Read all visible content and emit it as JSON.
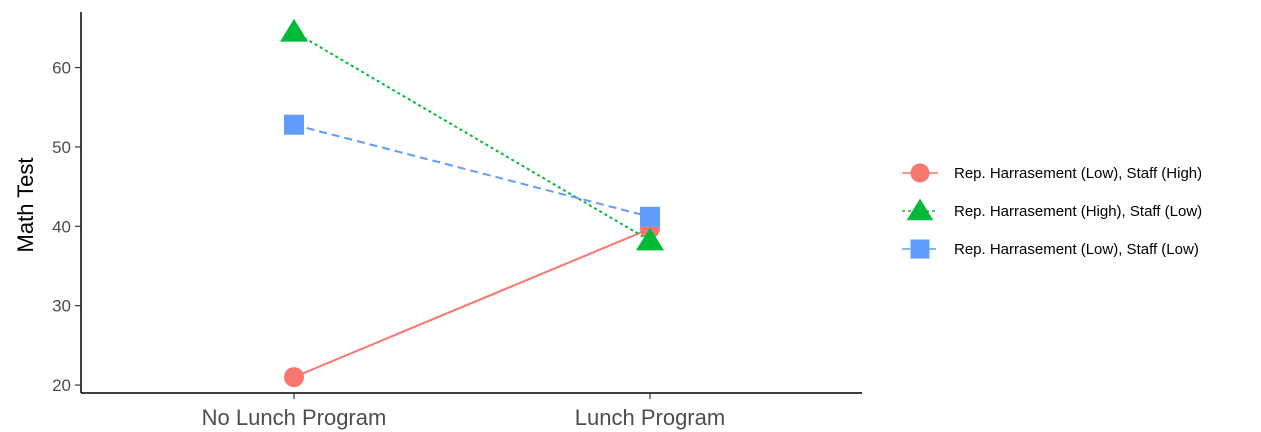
{
  "chart_data": {
    "type": "line",
    "title": "",
    "xlabel": "",
    "ylabel": "Math Test",
    "categories": [
      "No Lunch Program",
      "Lunch Program"
    ],
    "ylim": [
      19,
      67
    ],
    "yticks": [
      20,
      30,
      40,
      50,
      60
    ],
    "grid": false,
    "legend_position": "right",
    "series": [
      {
        "name": "Rep. Harrasement (Low), Staff (High)",
        "values": [
          21,
          39.7
        ],
        "color": "#F8766D",
        "marker": "circle",
        "linestyle": "solid"
      },
      {
        "name": "Rep. Harrasement (High), Staff (Low)",
        "values": [
          64.5,
          38.2
        ],
        "color": "#00BA38",
        "marker": "triangle",
        "linestyle": "dotted"
      },
      {
        "name": "Rep. Harrasement (Low), Staff (Low)",
        "values": [
          52.8,
          41.2
        ],
        "color": "#619CFF",
        "marker": "square",
        "linestyle": "dashed"
      }
    ]
  }
}
